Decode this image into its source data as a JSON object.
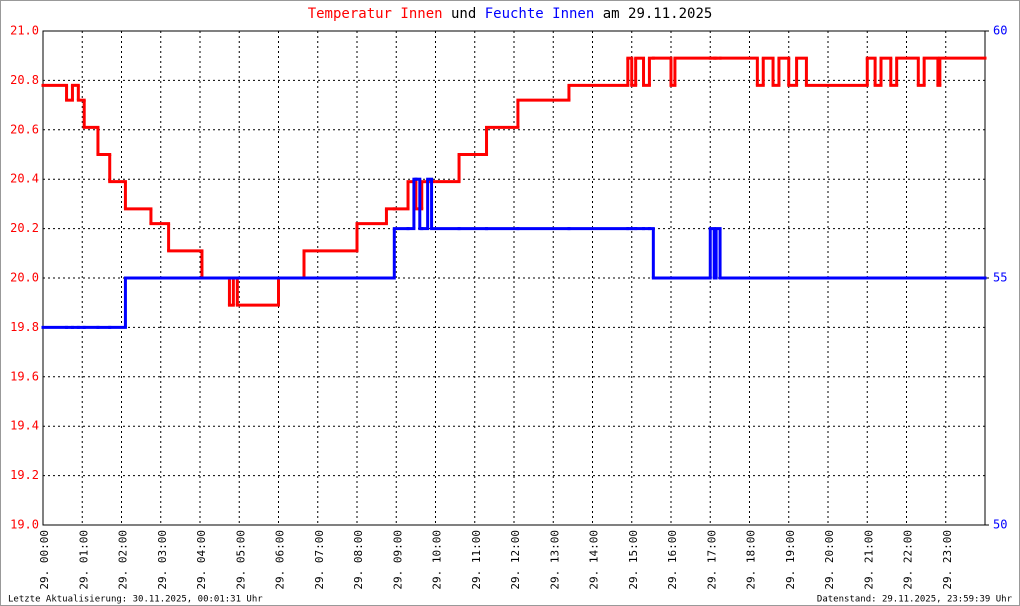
{
  "chart_data": {
    "type": "line",
    "step": true,
    "title_connector": "und",
    "title_date": "am 29.11.2025",
    "footer_left": "Letzte Aktualisierung: 30.11.2025, 00:01:31 Uhr",
    "footer_right": "Datenstand: 29.11.2025, 23:59:39 Uhr",
    "xlim": [
      0,
      24
    ],
    "xticks": [
      {
        "value": 0,
        "label": "29. 00:00"
      },
      {
        "value": 1,
        "label": "29. 01:00"
      },
      {
        "value": 2,
        "label": "29. 02:00"
      },
      {
        "value": 3,
        "label": "29. 03:00"
      },
      {
        "value": 4,
        "label": "29. 04:00"
      },
      {
        "value": 5,
        "label": "29. 05:00"
      },
      {
        "value": 6,
        "label": "29. 06:00"
      },
      {
        "value": 7,
        "label": "29. 07:00"
      },
      {
        "value": 8,
        "label": "29. 08:00"
      },
      {
        "value": 9,
        "label": "29. 09:00"
      },
      {
        "value": 10,
        "label": "29. 10:00"
      },
      {
        "value": 11,
        "label": "29. 11:00"
      },
      {
        "value": 12,
        "label": "29. 12:00"
      },
      {
        "value": 13,
        "label": "29. 13:00"
      },
      {
        "value": 14,
        "label": "29. 14:00"
      },
      {
        "value": 15,
        "label": "29. 15:00"
      },
      {
        "value": 16,
        "label": "29. 16:00"
      },
      {
        "value": 17,
        "label": "29. 17:00"
      },
      {
        "value": 18,
        "label": "29. 18:00"
      },
      {
        "value": 19,
        "label": "29. 19:00"
      },
      {
        "value": 20,
        "label": "29. 20:00"
      },
      {
        "value": 21,
        "label": "29. 21:00"
      },
      {
        "value": 22,
        "label": "29. 22:00"
      },
      {
        "value": 23,
        "label": "29. 23:00"
      }
    ],
    "ylim": [
      19.0,
      21.0
    ],
    "yticks": [
      {
        "value": 19.0,
        "label": "19.0"
      },
      19.2,
      19.4,
      19.6,
      19.8,
      {
        "value": 20.0,
        "label": "20.0"
      },
      20.2,
      20.4,
      20.6,
      20.8,
      {
        "value": 21.0,
        "label": "21.0"
      }
    ],
    "y2lim": [
      50,
      60
    ],
    "y2ticks": [
      50,
      55,
      60
    ],
    "grid": true,
    "x": [
      0,
      0.6,
      0.75,
      0.9,
      1.05,
      1.4,
      1.7,
      2.1,
      2.75,
      3.2,
      4.05,
      4.75,
      4.85,
      4.95,
      6.0,
      6.65,
      8.0,
      8.75,
      8.95,
      9.3,
      9.45,
      9.5,
      9.6,
      9.65,
      9.8,
      9.9,
      10.6,
      11.3,
      12.1,
      13.4,
      14.9,
      15.0,
      15.1,
      15.3,
      15.45,
      15.55,
      16.0,
      16.1,
      17.0,
      17.1,
      17.15,
      17.25,
      18.2,
      18.35,
      18.6,
      18.75,
      19.0,
      19.2,
      19.45,
      21.0,
      21.2,
      21.35,
      21.6,
      21.75,
      22.3,
      22.45,
      22.8,
      22.85,
      24
    ],
    "series": [
      {
        "name": "Temperatur Innen",
        "color": "#ff0000",
        "values": [
          20.78,
          20.72,
          20.78,
          20.72,
          20.61,
          20.5,
          20.39,
          20.28,
          20.22,
          20.11,
          20.0,
          19.89,
          20.0,
          19.89,
          20.0,
          20.11,
          20.22,
          20.28,
          20.28,
          20.39,
          20.39,
          20.28,
          20.28,
          20.39,
          20.39,
          20.39,
          20.5,
          20.61,
          20.72,
          20.78,
          20.89,
          20.78,
          20.89,
          20.78,
          20.89,
          20.89,
          20.78,
          20.89,
          20.89,
          20.89,
          20.89,
          20.89,
          20.78,
          20.89,
          20.78,
          20.89,
          20.78,
          20.89,
          20.78,
          20.89,
          20.78,
          20.89,
          20.78,
          20.89,
          20.78,
          20.89,
          20.78,
          20.89,
          20.89
        ]
      },
      {
        "name": "Feuchte Innen",
        "color": "#0000ff",
        "axis": "y2",
        "values": [
          54,
          54,
          54,
          54,
          54,
          54,
          54,
          55,
          55,
          55,
          55,
          55,
          55,
          55,
          55,
          55,
          55,
          55,
          56,
          56,
          57,
          57,
          56,
          56,
          57,
          56,
          56,
          56,
          56,
          56,
          56,
          56,
          56,
          56,
          56,
          55,
          55,
          55,
          56,
          55,
          56,
          55,
          55,
          55,
          55,
          55,
          55,
          55,
          55,
          55,
          55,
          55,
          55,
          55,
          55,
          55,
          55,
          55,
          55
        ]
      }
    ]
  }
}
